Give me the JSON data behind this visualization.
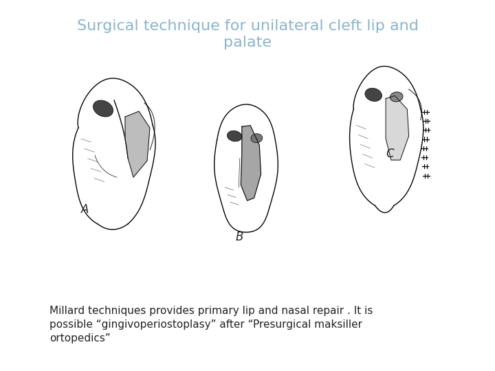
{
  "title_line1": "Surgical technique for unilateral cleft lip and",
  "title_line2": "palate",
  "title_color": "#8ab4cc",
  "title_fontsize": 16,
  "body_text_line1": "Millard techniques provides primary lip and nasal repair . It is",
  "body_text_line2": "possible “gingivoperiostoplasy” after “Presurgical maksiller",
  "body_text_line3": "ortopedics”",
  "body_fontsize": 11,
  "body_color": "#222222",
  "label_A": "A",
  "label_B": "B",
  "label_C": "C",
  "bg_color": "#ffffff",
  "fig_width": 7.2,
  "fig_height": 5.4,
  "dpi": 100
}
